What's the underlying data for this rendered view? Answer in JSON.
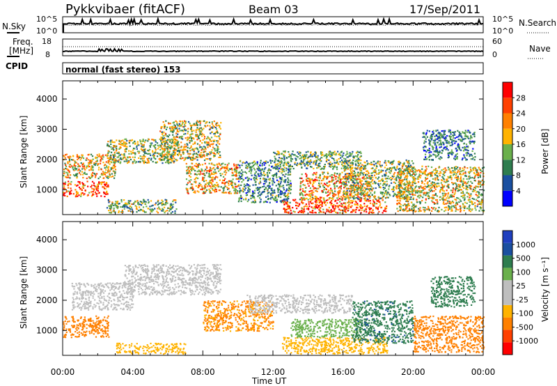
{
  "header": {
    "station": "Pykkvibaer (fitACF)",
    "beam": "Beam 03",
    "date": "17/Sep/2011"
  },
  "top_panels": {
    "nsky_label": "N.Sky",
    "nsearch_label": "N.Search",
    "noise_ticks": [
      "10^5",
      "10^0"
    ],
    "freq_label_1": "Freq.",
    "freq_label_2": "[MHz]",
    "freq_ticks": [
      "18",
      "8"
    ],
    "nave_label": "Nave",
    "nave_ticks": [
      "60",
      "0"
    ],
    "cpid_label": "CPID",
    "mode_text": "normal (fast stereo) 153"
  },
  "colors": {
    "power_scale": [
      "#0000ff",
      "#1a4fa0",
      "#2e7d4f",
      "#6ab04c",
      "#ffb300",
      "#ff8000",
      "#ff4000",
      "#ff0000"
    ],
    "velocity_scale": [
      "#ff0000",
      "#ff4000",
      "#ff8000",
      "#ffb300",
      "#bebebe",
      "#bebebe",
      "#6ab04c",
      "#2e7d4f",
      "#1a4fa0",
      "#1f3fbf"
    ]
  },
  "chart_data": [
    {
      "type": "heatmap",
      "title": "",
      "xlabel": "Time UT",
      "ylabel": "Slant Range [km]",
      "xlim": [
        0,
        24
      ],
      "ylim": [
        180,
        4600
      ],
      "x_ticks": [
        "00:00",
        "04:00",
        "08:00",
        "12:00",
        "16:00",
        "20:00",
        "00:00"
      ],
      "y_ticks": [
        "1000",
        "2000",
        "3000",
        "4000"
      ],
      "colorbar_label": "Power [dB]",
      "colorbar_ticks": [
        "4",
        "8",
        "12",
        "16",
        "20",
        "24",
        "28"
      ],
      "colorbar_range": [
        0,
        32
      ],
      "scatter_regions": [
        {
          "t": [
            0.0,
            2.6
          ],
          "r": [
            800,
            1300
          ],
          "value": 26
        },
        {
          "t": [
            0.0,
            3.0
          ],
          "r": [
            1400,
            2200
          ],
          "value": 18
        },
        {
          "t": [
            2.5,
            6.5
          ],
          "r": [
            1900,
            2700
          ],
          "value": 15
        },
        {
          "t": [
            5.5,
            9.0
          ],
          "r": [
            2000,
            3300
          ],
          "value": 16
        },
        {
          "t": [
            7.0,
            10.0
          ],
          "r": [
            900,
            1900
          ],
          "value": 19
        },
        {
          "t": [
            2.5,
            6.5
          ],
          "r": [
            250,
            700
          ],
          "value": 14
        },
        {
          "t": [
            10.0,
            13.0
          ],
          "r": [
            600,
            2000
          ],
          "value": 10
        },
        {
          "t": [
            12.5,
            18.5
          ],
          "r": [
            250,
            700
          ],
          "value": 27
        },
        {
          "t": [
            13.5,
            17.5
          ],
          "r": [
            700,
            1600
          ],
          "value": 21
        },
        {
          "t": [
            12.0,
            17.0
          ],
          "r": [
            1700,
            2300
          ],
          "value": 12
        },
        {
          "t": [
            16.0,
            20.0
          ],
          "r": [
            700,
            2000
          ],
          "value": 14
        },
        {
          "t": [
            19.0,
            24.0
          ],
          "r": [
            300,
            1800
          ],
          "value": 17
        },
        {
          "t": [
            20.5,
            23.5
          ],
          "r": [
            2000,
            3000
          ],
          "value": 9
        }
      ]
    },
    {
      "type": "heatmap",
      "title": "",
      "xlabel": "Time UT",
      "ylabel": "Slant Range [km]",
      "xlim": [
        0,
        24
      ],
      "ylim": [
        180,
        4600
      ],
      "x_ticks": [
        "00:00",
        "04:00",
        "08:00",
        "12:00",
        "16:00",
        "20:00",
        "00:00"
      ],
      "y_ticks": [
        "1000",
        "2000",
        "3000",
        "4000"
      ],
      "colorbar_label": "Velocity [m s⁻¹]",
      "colorbar_ticks": [
        "-1000",
        "-500",
        "-100",
        "-25",
        "25",
        "100",
        "500",
        "1000"
      ],
      "scatter_regions": [
        {
          "t": [
            0.0,
            2.6
          ],
          "r": [
            800,
            1500
          ],
          "value": -150
        },
        {
          "t": [
            0.5,
            4.0
          ],
          "r": [
            1700,
            2600
          ],
          "value": 0
        },
        {
          "t": [
            3.5,
            9.0
          ],
          "r": [
            2200,
            3200
          ],
          "value": 5
        },
        {
          "t": [
            8.0,
            12.0
          ],
          "r": [
            1000,
            2000
          ],
          "value": -120
        },
        {
          "t": [
            3.0,
            7.0
          ],
          "r": [
            250,
            600
          ],
          "value": -60
        },
        {
          "t": [
            10.5,
            16.5
          ],
          "r": [
            1600,
            2200
          ],
          "value": 0
        },
        {
          "t": [
            12.5,
            18.5
          ],
          "r": [
            250,
            800
          ],
          "value": -60
        },
        {
          "t": [
            13.0,
            17.0
          ],
          "r": [
            800,
            1400
          ],
          "value": 70
        },
        {
          "t": [
            16.5,
            20.0
          ],
          "r": [
            600,
            2000
          ],
          "value": 400
        },
        {
          "t": [
            20.0,
            24.0
          ],
          "r": [
            300,
            1500
          ],
          "value": -300
        },
        {
          "t": [
            21.0,
            23.5
          ],
          "r": [
            1800,
            2800
          ],
          "value": 300
        }
      ]
    }
  ]
}
